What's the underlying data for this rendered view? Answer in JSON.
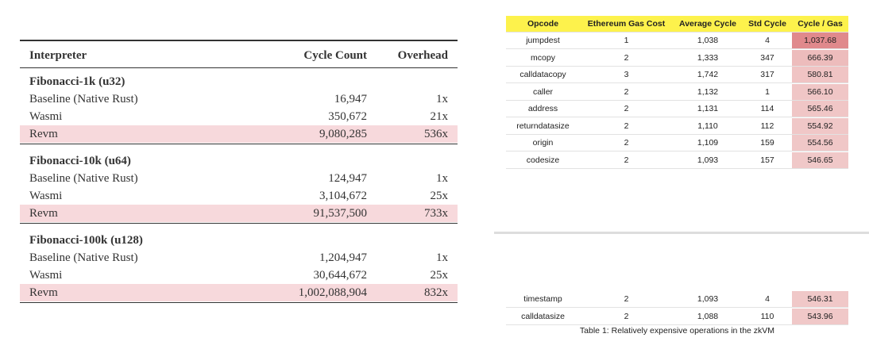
{
  "left_table": {
    "headers": [
      "Interpreter",
      "Cycle Count",
      "Overhead"
    ],
    "groups": [
      {
        "title": "Fibonacci-1k (u32)",
        "rows": [
          [
            "Baseline (Native Rust)",
            "16,947",
            "1x"
          ],
          [
            "Wasmi",
            "350,672",
            "21x"
          ],
          [
            "Revm",
            "9,080,285",
            "536x"
          ]
        ]
      },
      {
        "title": "Fibonacci-10k (u64)",
        "rows": [
          [
            "Baseline (Native Rust)",
            "124,947",
            "1x"
          ],
          [
            "Wasmi",
            "3,104,672",
            "25x"
          ],
          [
            "Revm",
            "91,537,500",
            "733x"
          ]
        ]
      },
      {
        "title": "Fibonacci-100k (u128)",
        "rows": [
          [
            "Baseline (Native Rust)",
            "1,204,947",
            "1x"
          ],
          [
            "Wasmi",
            "30,644,672",
            "25x"
          ],
          [
            "Revm",
            "1,002,088,904",
            "832x"
          ]
        ]
      }
    ],
    "highlight_color": "#f7d9dc"
  },
  "right_table": {
    "headers": [
      "Opcode",
      "Ethereum Gas Cost",
      "Average Cycle",
      "Std Cycle",
      "Cycle / Gas"
    ],
    "header_color": "#fdf24c",
    "rows": [
      [
        "jumpdest",
        "1",
        "1,038",
        "4",
        "1,037.68"
      ],
      [
        "mcopy",
        "2",
        "1,333",
        "347",
        "666.39"
      ],
      [
        "calldatacopy",
        "3",
        "1,742",
        "317",
        "580.81"
      ],
      [
        "caller",
        "2",
        "1,132",
        "1",
        "566.10"
      ],
      [
        "address",
        "2",
        "1,131",
        "114",
        "565.46"
      ],
      [
        "returndatasize",
        "2",
        "1,110",
        "112",
        "554.92"
      ],
      [
        "origin",
        "2",
        "1,109",
        "159",
        "554.56"
      ],
      [
        "codesize",
        "2",
        "1,093",
        "157",
        "546.65"
      ]
    ],
    "row_colors": [
      "#e0898c",
      "#edbcbc",
      "#f0c4c4",
      "#f0c6c6",
      "#f0c6c6",
      "#f0c7c7",
      "#f0c7c7",
      "#f0c8c8"
    ],
    "lower_rows": [
      [
        "timestamp",
        "2",
        "1,093",
        "4",
        "546.31"
      ],
      [
        "calldatasize",
        "2",
        "1,088",
        "110",
        "543.96"
      ]
    ],
    "lower_row_colors": [
      "#f0c8c8",
      "#f0c8c8"
    ],
    "caption": "Table 1: Relatively expensive operations in the zkVM"
  }
}
